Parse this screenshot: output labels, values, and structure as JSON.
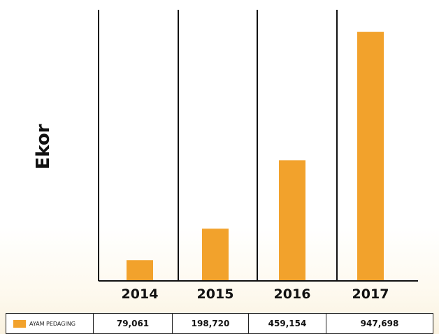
{
  "chart_data": {
    "type": "bar",
    "categories": [
      "2014",
      "2015",
      "2016",
      "2017"
    ],
    "series": [
      {
        "name": "AYAM PEDAGING",
        "values": [
          79061,
          198720,
          459154,
          947698
        ]
      }
    ],
    "ylabel": "Ekor",
    "xlabel": "",
    "ylim": [
      0,
      1000000
    ],
    "grid": false,
    "legend": "bottom data table",
    "table_values": [
      "79,061",
      "198,720",
      "459,154",
      "947,698"
    ],
    "colors": {
      "bar": "#f2a22c",
      "axis": "#111111",
      "separator": "#111111"
    }
  }
}
